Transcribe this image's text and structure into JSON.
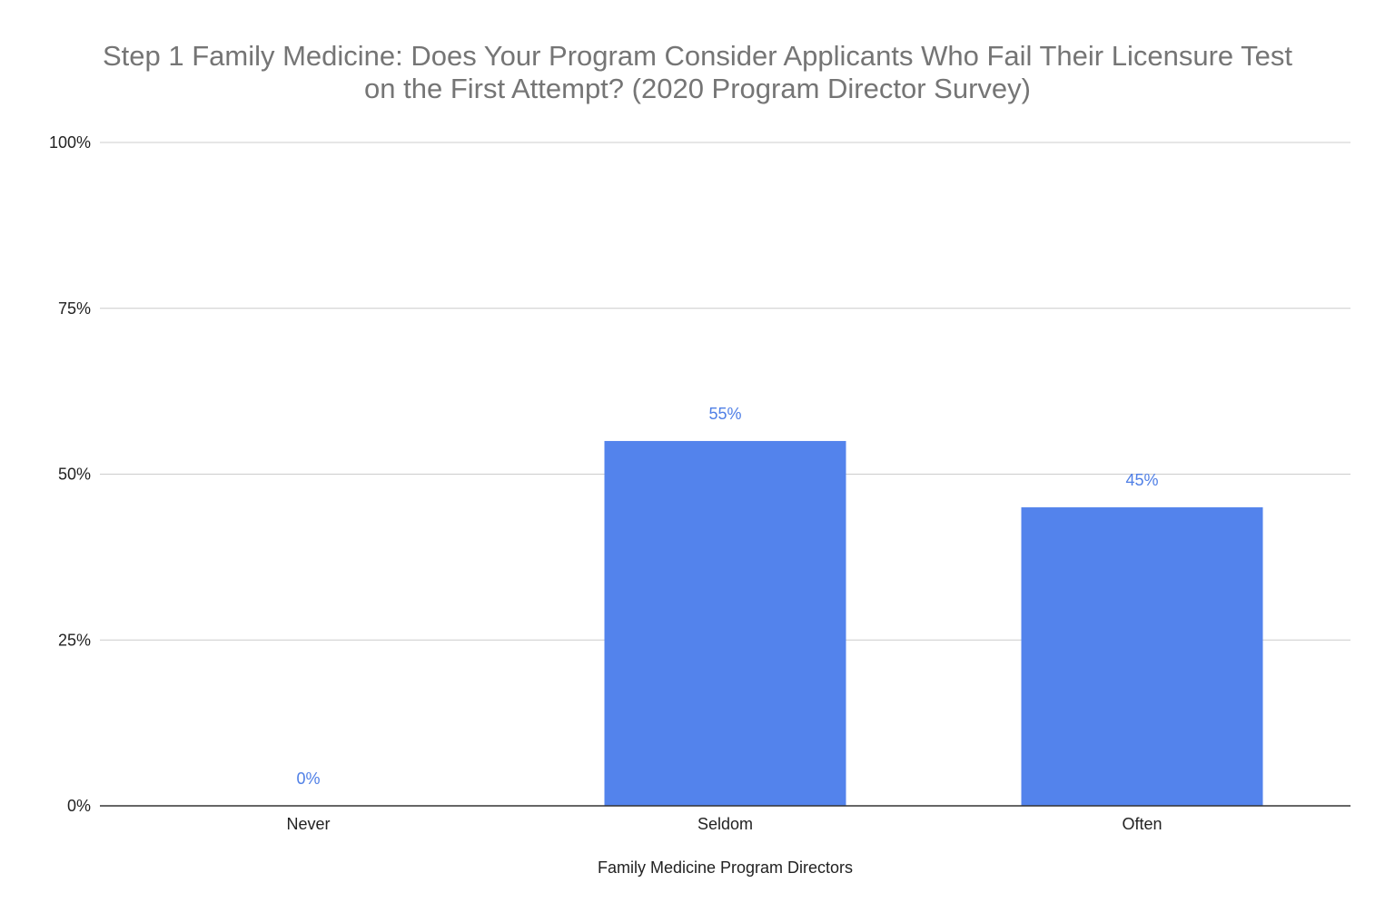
{
  "chart_data": {
    "type": "bar",
    "title_lines": [
      "Step 1 Family Medicine: Does Your Program Consider Applicants Who Fail Their Licensure Test",
      "on the First Attempt? (2020 Program Director Survey)"
    ],
    "xlabel": "Family Medicine Program Directors",
    "ylabel": "",
    "categories": [
      "Never",
      "Seldom",
      "Often"
    ],
    "values": [
      0,
      55,
      45
    ],
    "data_labels": [
      "0%",
      "55%",
      "45%"
    ],
    "ylim": [
      0,
      100
    ],
    "yticks": [
      0,
      25,
      50,
      75,
      100
    ],
    "ytick_labels": [
      "0%",
      "25%",
      "50%",
      "75%",
      "100%"
    ],
    "grid": true,
    "legend": "none",
    "bar_color": "#5383ec",
    "label_color": "#4f7fe6"
  }
}
